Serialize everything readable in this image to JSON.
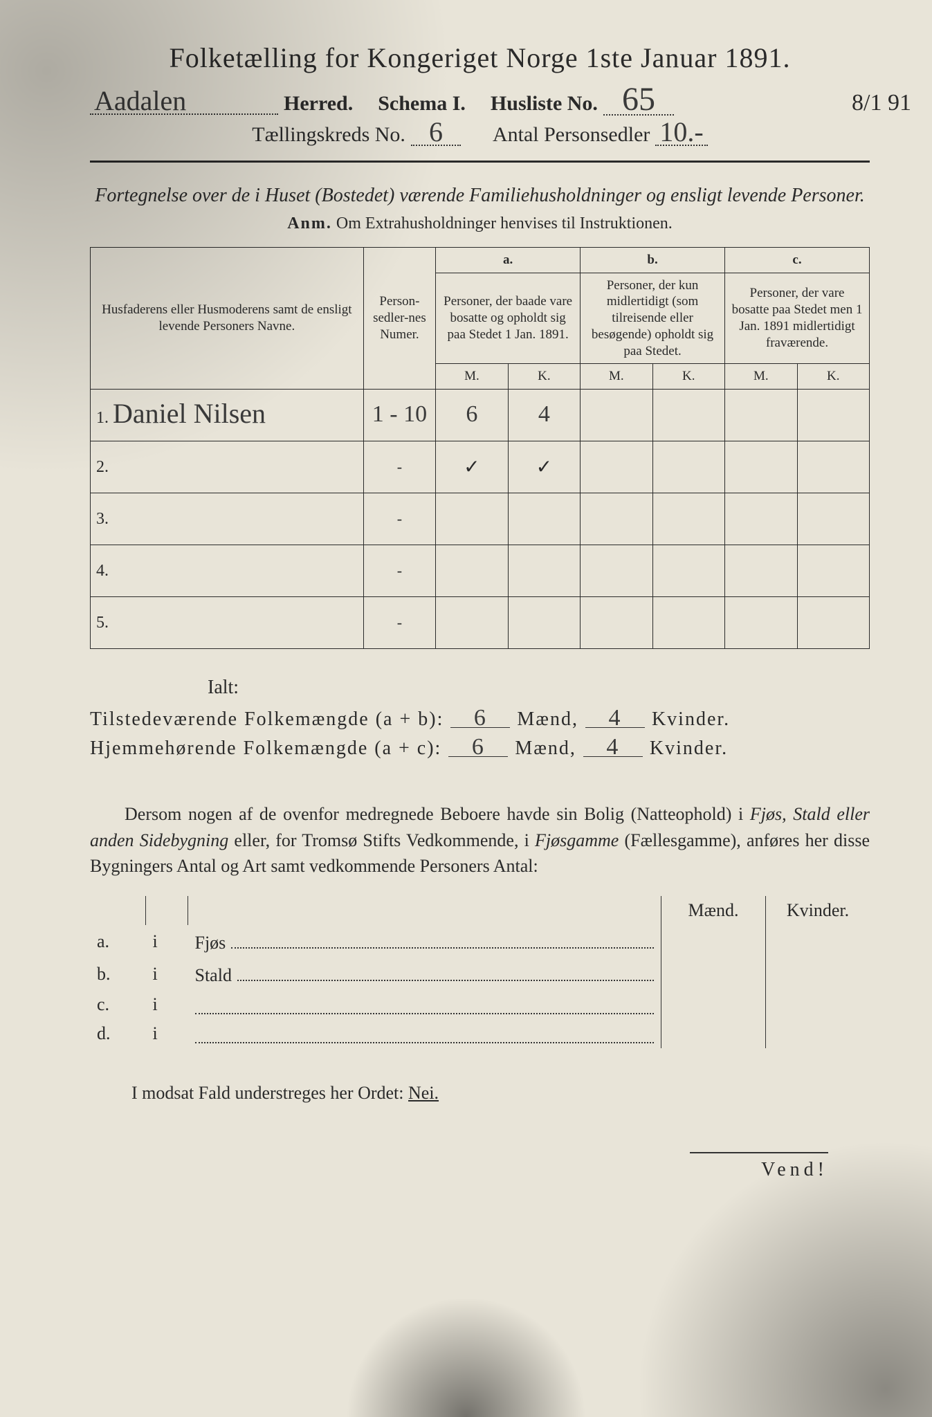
{
  "title": "Folketælling for Kongeriget Norge 1ste Januar 1891.",
  "header": {
    "herred_value": "Aadalen",
    "herred_label": "Herred.",
    "schema_label": "Schema I.",
    "husliste_label": "Husliste No.",
    "husliste_value": "65",
    "margin_date": "8/1 91",
    "kreds_label": "Tællingskreds No.",
    "kreds_value": "6",
    "antal_label": "Antal Personsedler",
    "antal_value": "10.-"
  },
  "section_desc": "Fortegnelse over de i Huset (Bostedet) værende Familiehusholdninger og ensligt levende Personer.",
  "anm_label": "Anm.",
  "anm_text": "Om Extrahusholdninger henvises til Instruktionen.",
  "table": {
    "col_name": "Husfaderens eller Husmoderens samt de ensligt levende Personers Navne.",
    "col_num": "Person-sedler-nes Numer.",
    "col_a_top": "a.",
    "col_a": "Personer, der baade vare bosatte og opholdt sig paa Stedet 1 Jan. 1891.",
    "col_b_top": "b.",
    "col_b": "Personer, der kun midlertidigt (som tilreisende eller besøgende) opholdt sig paa Stedet.",
    "col_c_top": "c.",
    "col_c": "Personer, der vare bosatte paa Stedet men 1 Jan. 1891 midlertidigt fraværende.",
    "m": "M.",
    "k": "K.",
    "rows": [
      {
        "n": "1.",
        "name": "Daniel Nilsen",
        "num": "1 - 10",
        "a_m": "6",
        "a_k": "4",
        "b_m": "",
        "b_k": "",
        "c_m": "",
        "c_k": ""
      },
      {
        "n": "2.",
        "name": "",
        "num": "-",
        "a_m": "✓",
        "a_k": "✓",
        "b_m": "",
        "b_k": "",
        "c_m": "",
        "c_k": ""
      },
      {
        "n": "3.",
        "name": "",
        "num": "-",
        "a_m": "",
        "a_k": "",
        "b_m": "",
        "b_k": "",
        "c_m": "",
        "c_k": ""
      },
      {
        "n": "4.",
        "name": "",
        "num": "-",
        "a_m": "",
        "a_k": "",
        "b_m": "",
        "b_k": "",
        "c_m": "",
        "c_k": ""
      },
      {
        "n": "5.",
        "name": "",
        "num": "-",
        "a_m": "",
        "a_k": "",
        "b_m": "",
        "b_k": "",
        "c_m": "",
        "c_k": ""
      }
    ]
  },
  "totals": {
    "ialt": "Ialt:",
    "line1_label": "Tilstedeværende Folkemængde (a + b):",
    "line2_label": "Hjemmehørende Folkemængde (a + c):",
    "maend": "Mænd,",
    "kvinder": "Kvinder.",
    "l1_m": "6",
    "l1_k": "4",
    "l2_m": "6",
    "l2_k": "4"
  },
  "paragraph": {
    "part1": "Dersom nogen af de ovenfor medregnede Beboere havde sin Bolig (Natteophold) i ",
    "ital1": "Fjøs, Stald eller anden Sidebygning",
    "part2": " eller, for Tromsø Stifts Vedkommende, i ",
    "ital2": "Fjøsgamme",
    "part3": " (Fællesgamme), anføres her disse Bygningers Antal og Art samt vedkommende Personers Antal:"
  },
  "side": {
    "maend": "Mænd.",
    "kvinder": "Kvinder.",
    "rows": [
      {
        "l": "a.",
        "i": "i",
        "t": "Fjøs"
      },
      {
        "l": "b.",
        "i": "i",
        "t": "Stald"
      },
      {
        "l": "c.",
        "i": "i",
        "t": ""
      },
      {
        "l": "d.",
        "i": "i",
        "t": ""
      }
    ]
  },
  "nei_line": "I modsat Fald understreges her Ordet: ",
  "nei": "Nei.",
  "vend": "Vend!"
}
